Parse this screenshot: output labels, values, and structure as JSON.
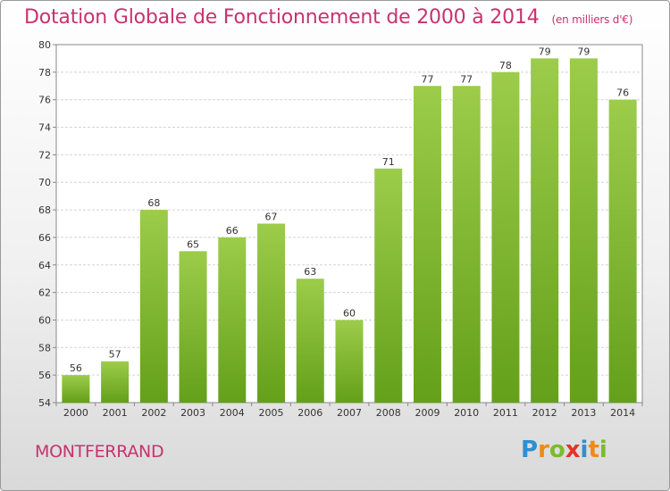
{
  "header": {
    "title": "Dotation Globale de Fonctionnement de 2000 à 2014",
    "unit": "(en milliers d'€)"
  },
  "footer": {
    "town": "MONTFERRAND",
    "logo_letters": [
      "P",
      "r",
      "o",
      "x",
      "i",
      "t",
      "i"
    ],
    "logo_colors": [
      "#2f8fd0",
      "#f08a16",
      "#7dbb2a",
      "#e0342b",
      "#2f8fd0",
      "#f08a16",
      "#7dbb2a"
    ]
  },
  "chart_data": {
    "type": "bar",
    "title": "Dotation Globale de Fonctionnement de 2000 à 2014",
    "subtitle": "(en milliers d'€)",
    "categories": [
      "2000",
      "2001",
      "2002",
      "2003",
      "2004",
      "2005",
      "2006",
      "2007",
      "2008",
      "2009",
      "2010",
      "2011",
      "2012",
      "2013",
      "2014"
    ],
    "values": [
      56,
      57,
      68,
      65,
      66,
      67,
      63,
      60,
      71,
      77,
      77,
      78,
      79,
      79,
      76
    ],
    "ylim": [
      54,
      80
    ],
    "yticks": [
      54,
      56,
      58,
      60,
      62,
      64,
      66,
      68,
      70,
      72,
      74,
      76,
      78,
      80
    ],
    "grid": true,
    "bar_color_top": "#9ccc4a",
    "bar_color_bottom": "#64a01a"
  }
}
